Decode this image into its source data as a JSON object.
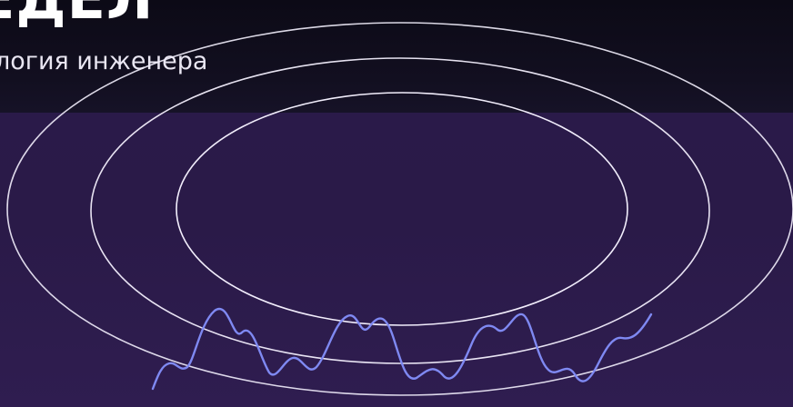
{
  "slide": {
    "headline": "ЕДЕЛ",
    "subline": "логия инженера"
  },
  "colors": {
    "header_background": "#0c0a16",
    "slide_background": "#2a1a48",
    "ring_stroke": "#ffffff",
    "wave_stroke": "#7c86f0"
  }
}
